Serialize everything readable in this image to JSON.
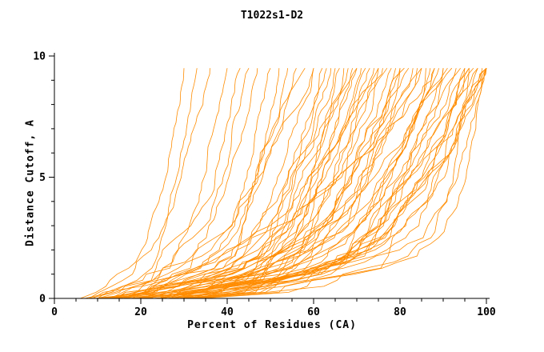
{
  "chart_data": {
    "type": "line",
    "title": "T1022s1-D2",
    "xlabel": "Percent of Residues (CA)",
    "ylabel": "Distance Cutoff, A",
    "xlim": [
      0,
      100
    ],
    "ylim": [
      0,
      10
    ],
    "xticks": [
      0,
      20,
      40,
      60,
      80,
      100
    ],
    "x_minor_step": 5,
    "yticks": [
      0,
      5,
      10
    ],
    "y_minor_step": 1,
    "curve_color": "#ff8c00",
    "axis_color": "#000000",
    "cutoff_min": 0,
    "cutoff_max": 9.5,
    "cutoff_step": 0.25,
    "series": [
      {
        "s": 6,
        "e": 30,
        "seed": 1
      },
      {
        "s": 7,
        "e": 33,
        "seed": 2
      },
      {
        "s": 8,
        "e": 36,
        "seed": 3
      },
      {
        "s": 8,
        "e": 40,
        "seed": 4
      },
      {
        "s": 9,
        "e": 43,
        "seed": 5
      },
      {
        "s": 10,
        "e": 45,
        "seed": 6
      },
      {
        "s": 10,
        "e": 47,
        "seed": 7
      },
      {
        "s": 11,
        "e": 50,
        "seed": 8
      },
      {
        "s": 12,
        "e": 52,
        "seed": 9
      },
      {
        "s": 12,
        "e": 54,
        "seed": 10
      },
      {
        "s": 13,
        "e": 56,
        "seed": 11
      },
      {
        "s": 13,
        "e": 58,
        "seed": 12
      },
      {
        "s": 14,
        "e": 60,
        "seed": 13
      },
      {
        "s": 14,
        "e": 62,
        "seed": 14
      },
      {
        "s": 15,
        "e": 63,
        "seed": 15
      },
      {
        "s": 15,
        "e": 64,
        "seed": 16
      },
      {
        "s": 16,
        "e": 65,
        "seed": 17
      },
      {
        "s": 16,
        "e": 66,
        "seed": 18
      },
      {
        "s": 17,
        "e": 67,
        "seed": 19
      },
      {
        "s": 17,
        "e": 68,
        "seed": 20
      },
      {
        "s": 18,
        "e": 69,
        "seed": 21
      },
      {
        "s": 18,
        "e": 70,
        "seed": 22
      },
      {
        "s": 19,
        "e": 71,
        "seed": 23
      },
      {
        "s": 19,
        "e": 72,
        "seed": 24
      },
      {
        "s": 20,
        "e": 73,
        "seed": 25
      },
      {
        "s": 20,
        "e": 74,
        "seed": 26
      },
      {
        "s": 21,
        "e": 75,
        "seed": 27
      },
      {
        "s": 21,
        "e": 76,
        "seed": 28
      },
      {
        "s": 22,
        "e": 77,
        "seed": 29
      },
      {
        "s": 22,
        "e": 78,
        "seed": 30
      },
      {
        "s": 23,
        "e": 79,
        "seed": 31
      },
      {
        "s": 23,
        "e": 80,
        "seed": 32
      },
      {
        "s": 24,
        "e": 81,
        "seed": 33
      },
      {
        "s": 24,
        "e": 82,
        "seed": 34
      },
      {
        "s": 25,
        "e": 83,
        "seed": 35
      },
      {
        "s": 25,
        "e": 84,
        "seed": 36
      },
      {
        "s": 26,
        "e": 85,
        "seed": 37
      },
      {
        "s": 26,
        "e": 86,
        "seed": 38
      },
      {
        "s": 27,
        "e": 87,
        "seed": 39
      },
      {
        "s": 27,
        "e": 88,
        "seed": 40
      },
      {
        "s": 28,
        "e": 89,
        "seed": 41
      },
      {
        "s": 28,
        "e": 90,
        "seed": 42
      },
      {
        "s": 29,
        "e": 91,
        "seed": 43
      },
      {
        "s": 29,
        "e": 92,
        "seed": 44
      },
      {
        "s": 30,
        "e": 93,
        "seed": 45
      },
      {
        "s": 30,
        "e": 94,
        "seed": 46
      },
      {
        "s": 31,
        "e": 95,
        "seed": 47
      },
      {
        "s": 31,
        "e": 96,
        "seed": 48
      },
      {
        "s": 32,
        "e": 97,
        "seed": 49
      },
      {
        "s": 32,
        "e": 98,
        "seed": 50
      },
      {
        "s": 33,
        "e": 99,
        "seed": 51
      },
      {
        "s": 33,
        "e": 100,
        "seed": 52
      },
      {
        "s": 34,
        "e": 100,
        "seed": 53
      },
      {
        "s": 35,
        "e": 100,
        "seed": 54
      },
      {
        "s": 9,
        "e": 75,
        "seed": 55
      },
      {
        "s": 11,
        "e": 85,
        "seed": 56
      },
      {
        "s": 13,
        "e": 95,
        "seed": 57
      },
      {
        "s": 15,
        "e": 90,
        "seed": 58
      },
      {
        "s": 10,
        "e": 60,
        "seed": 59
      },
      {
        "s": 12,
        "e": 70,
        "seed": 60
      },
      {
        "s": 14,
        "e": 80,
        "seed": 61
      },
      {
        "s": 16,
        "e": 88,
        "seed": 62
      },
      {
        "s": 18,
        "e": 96,
        "seed": 63
      },
      {
        "s": 20,
        "e": 100,
        "seed": 64
      },
      {
        "s": 28,
        "e": 100,
        "seed": 65,
        "f": 2.4
      },
      {
        "s": 30,
        "e": 98,
        "seed": 66,
        "f": 2.8
      },
      {
        "s": 26,
        "e": 96,
        "seed": 67,
        "f": 2.2
      },
      {
        "s": 32,
        "e": 100,
        "seed": 68,
        "f": 2.6
      }
    ]
  }
}
